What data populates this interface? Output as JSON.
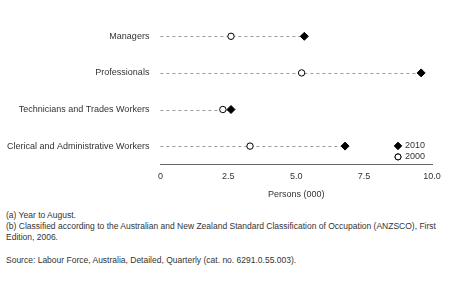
{
  "chart_data": {
    "type": "dot",
    "orientation": "horizontal",
    "categories": [
      "Managers",
      "Professionals",
      "Technicians and Trades Workers",
      "Clerical and Administrative Workers"
    ],
    "series": [
      {
        "name": "2010",
        "color": "#000000",
        "marker": "diamond",
        "values": [
          5.3,
          9.6,
          2.6,
          6.8
        ]
      },
      {
        "name": "2000",
        "color": "#000000",
        "marker": "open_circle",
        "values": [
          2.6,
          5.2,
          2.3,
          3.3
        ]
      }
    ],
    "x_label": "Persons (000)",
    "xlim": [
      0,
      10
    ],
    "xticks": [
      0,
      2.5,
      {
        "value": 5,
        "label": "5.0"
      },
      7.5,
      {
        "value": 10,
        "label": "10.0"
      }
    ],
    "grid": false,
    "legend": "lower right",
    "notes": [
      "(a) Year to August.",
      "(b) Classified according to the Australian and New Zealand Standard Classification of Occupation (ANZSCO), First Edition, 2006."
    ],
    "source": "Source: Labour Force, Australia, Detailed, Quarterly (cat. no. 6291.0.55.003)."
  }
}
